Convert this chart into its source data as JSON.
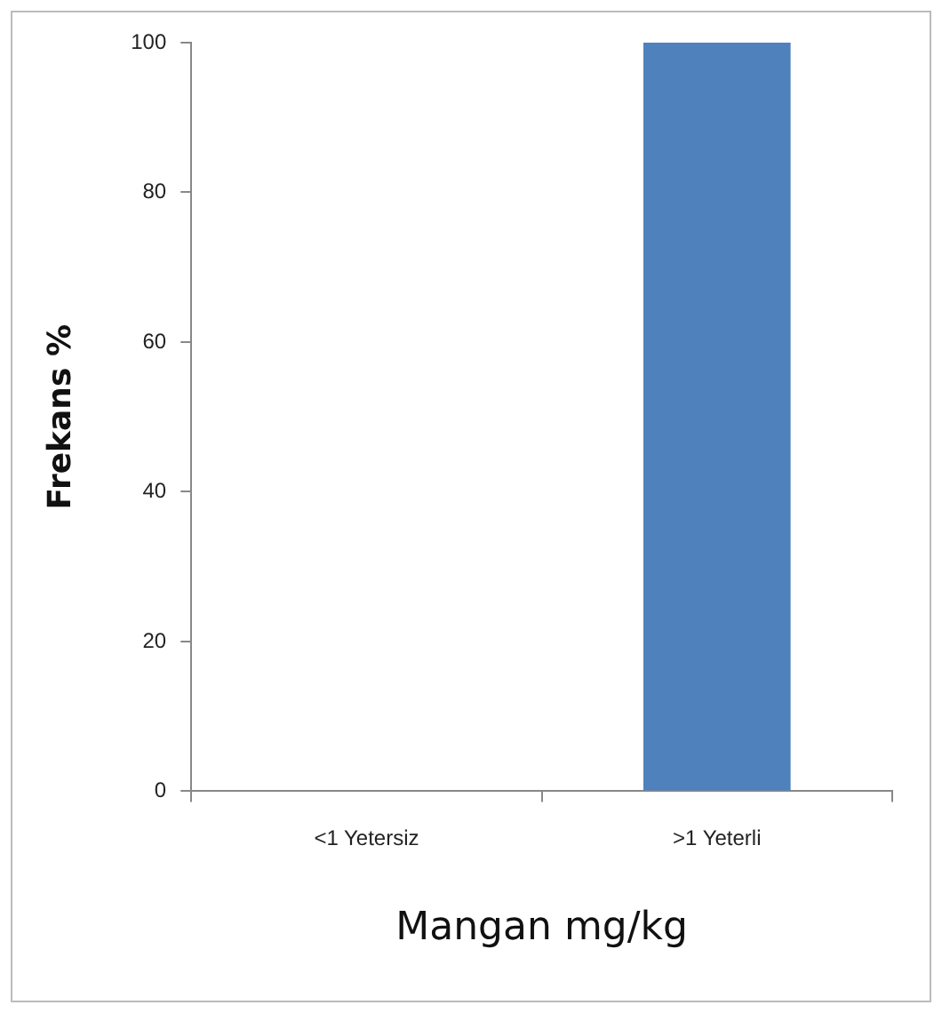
{
  "chart_data": {
    "type": "bar",
    "xlabel": "Mangan mg/kg",
    "ylabel": "Frekans %",
    "categories": [
      "<1 Yetersiz",
      ">1 Yeterli"
    ],
    "values": [
      0,
      100
    ],
    "color": "#4f81bd",
    "ylim": [
      0,
      100
    ],
    "yticks": [
      0,
      20,
      40,
      60,
      80,
      100
    ],
    "grid": false,
    "legend": false
  }
}
